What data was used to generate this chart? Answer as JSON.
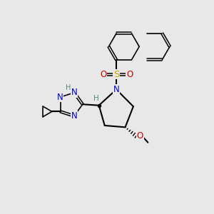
{
  "bg_color": "#e8e8e8",
  "bond_color": "#000000",
  "atom_colors": {
    "N": "#0000cc",
    "O": "#cc0000",
    "S": "#ccaa00",
    "H": "#558888",
    "C": "#000000"
  },
  "font_size": 8.5
}
